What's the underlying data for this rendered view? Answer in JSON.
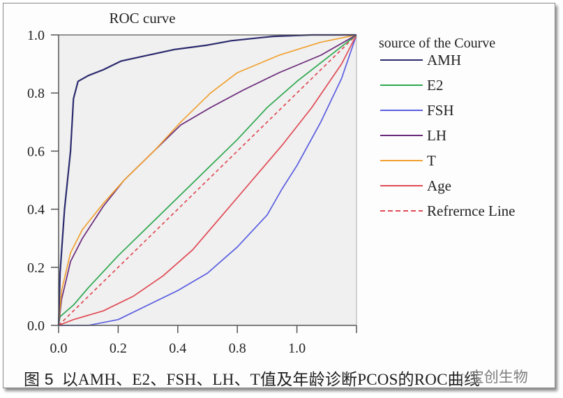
{
  "figure": {
    "caption_prefix": "图 5",
    "caption_text": "以AMH、E2、FSH、LH、T值及年龄诊断PCOS的ROC曲线",
    "watermark_icon": "wechat-icon",
    "watermark_text": "宝创生物"
  },
  "colors": {
    "plot_background": "#f0f0f0",
    "axis": "#555555",
    "AMH": "#2b2a6e",
    "E2": "#2ea84f",
    "FSH": "#5a5ee0",
    "LH": "#6b2a7a",
    "T": "#f0a030",
    "Age": "#e04a55",
    "Reference": "#e04a55"
  },
  "chart_data": {
    "type": "line",
    "title": "ROC curve",
    "xlabel": "",
    "ylabel": "",
    "xlim": [
      0,
      1
    ],
    "ylim": [
      0,
      1
    ],
    "x_tick_labels": [
      "0.0",
      "0.2",
      "0.4",
      "0.8",
      "1.0",
      ""
    ],
    "y_tick_labels": [
      "0.0",
      "0.2",
      "0.4",
      "0.6",
      "0.8",
      "1.0"
    ],
    "grid": false,
    "legend": {
      "title": "source of the Courve",
      "position": "right",
      "entries": [
        "AMH",
        "E2",
        "FSH",
        "LH",
        "T",
        "Age",
        "Refrernce Line"
      ]
    },
    "series": [
      {
        "name": "AMH",
        "style": "solid",
        "points": [
          [
            0,
            0
          ],
          [
            0.005,
            0.18
          ],
          [
            0.02,
            0.4
          ],
          [
            0.04,
            0.6
          ],
          [
            0.05,
            0.78
          ],
          [
            0.065,
            0.84
          ],
          [
            0.1,
            0.86
          ],
          [
            0.15,
            0.88
          ],
          [
            0.21,
            0.91
          ],
          [
            0.3,
            0.93
          ],
          [
            0.39,
            0.95
          ],
          [
            0.5,
            0.965
          ],
          [
            0.58,
            0.98
          ],
          [
            0.72,
            0.995
          ],
          [
            0.85,
            1.0
          ],
          [
            1,
            1
          ]
        ]
      },
      {
        "name": "E2",
        "style": "solid",
        "points": [
          [
            0,
            0
          ],
          [
            0.005,
            0.03
          ],
          [
            0.05,
            0.07
          ],
          [
            0.1,
            0.13
          ],
          [
            0.2,
            0.24
          ],
          [
            0.3,
            0.34
          ],
          [
            0.4,
            0.44
          ],
          [
            0.5,
            0.54
          ],
          [
            0.6,
            0.64
          ],
          [
            0.7,
            0.75
          ],
          [
            0.8,
            0.84
          ],
          [
            0.9,
            0.92
          ],
          [
            1,
            1
          ]
        ]
      },
      {
        "name": "FSH",
        "style": "solid",
        "points": [
          [
            0,
            0
          ],
          [
            0.1,
            0.0
          ],
          [
            0.2,
            0.02
          ],
          [
            0.3,
            0.07
          ],
          [
            0.4,
            0.12
          ],
          [
            0.5,
            0.18
          ],
          [
            0.6,
            0.27
          ],
          [
            0.7,
            0.38
          ],
          [
            0.75,
            0.47
          ],
          [
            0.8,
            0.55
          ],
          [
            0.88,
            0.7
          ],
          [
            0.95,
            0.85
          ],
          [
            1,
            1
          ]
        ]
      },
      {
        "name": "LH",
        "style": "solid",
        "points": [
          [
            0,
            0
          ],
          [
            0.01,
            0.09
          ],
          [
            0.04,
            0.22
          ],
          [
            0.08,
            0.3
          ],
          [
            0.15,
            0.41
          ],
          [
            0.22,
            0.5
          ],
          [
            0.32,
            0.6
          ],
          [
            0.41,
            0.69
          ],
          [
            0.51,
            0.75
          ],
          [
            0.62,
            0.81
          ],
          [
            0.74,
            0.87
          ],
          [
            0.88,
            0.93
          ],
          [
            1,
            1
          ]
        ]
      },
      {
        "name": "T",
        "style": "solid",
        "points": [
          [
            0,
            0
          ],
          [
            0.01,
            0.12
          ],
          [
            0.04,
            0.25
          ],
          [
            0.08,
            0.33
          ],
          [
            0.15,
            0.42
          ],
          [
            0.22,
            0.5
          ],
          [
            0.32,
            0.6
          ],
          [
            0.41,
            0.7
          ],
          [
            0.51,
            0.8
          ],
          [
            0.6,
            0.87
          ],
          [
            0.74,
            0.93
          ],
          [
            0.88,
            0.975
          ],
          [
            1,
            1
          ]
        ]
      },
      {
        "name": "Age",
        "style": "solid",
        "points": [
          [
            0,
            0
          ],
          [
            0.05,
            0.02
          ],
          [
            0.15,
            0.05
          ],
          [
            0.25,
            0.1
          ],
          [
            0.35,
            0.17
          ],
          [
            0.45,
            0.26
          ],
          [
            0.55,
            0.38
          ],
          [
            0.65,
            0.5
          ],
          [
            0.75,
            0.62
          ],
          [
            0.85,
            0.75
          ],
          [
            0.95,
            0.9
          ],
          [
            1,
            1
          ]
        ]
      },
      {
        "name": "Refrernce Line",
        "style": "dashed",
        "points": [
          [
            0,
            0
          ],
          [
            1,
            1
          ]
        ]
      }
    ]
  }
}
